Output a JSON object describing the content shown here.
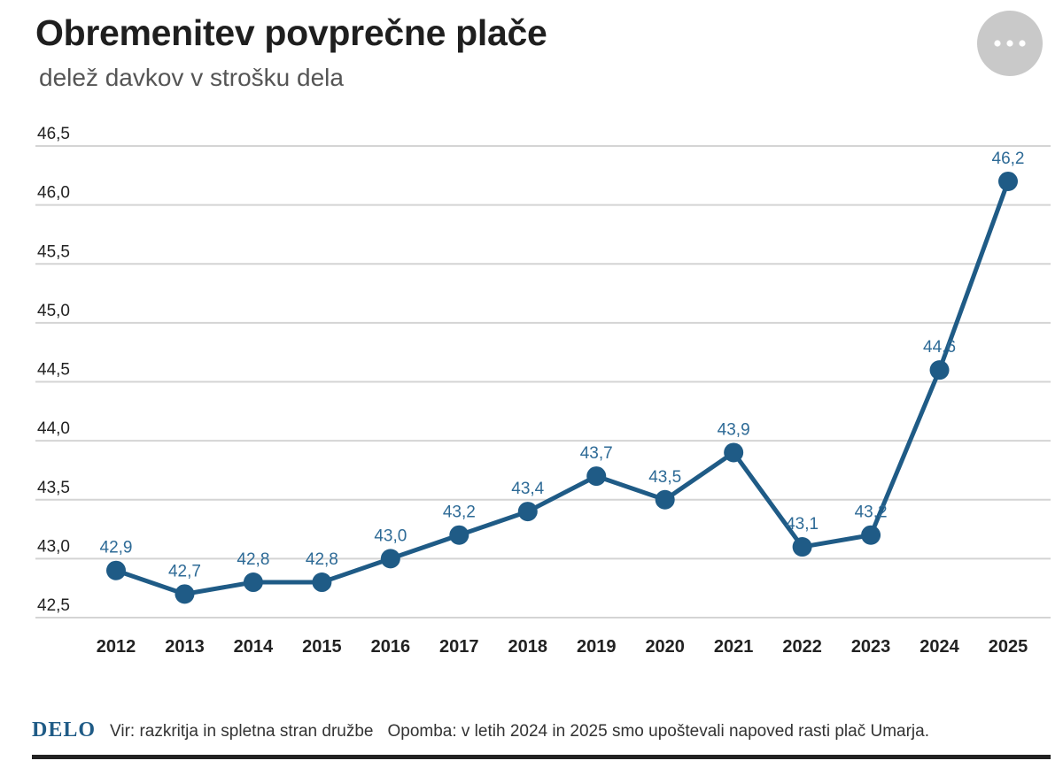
{
  "header": {
    "title": "Obremenitev povprečne plače",
    "subtitle": "delež davkov v strošku dela",
    "more_icon": "more-horizontal-icon"
  },
  "colors": {
    "series": "#1f5b86",
    "label": "#2d6a96",
    "grid": "#d4d4d4",
    "axis_text": "#222222"
  },
  "chart_data": {
    "type": "line",
    "title": "Obremenitev povprečne plače",
    "subtitle": "delež davkov v strošku dela",
    "xlabel": "",
    "ylabel": "",
    "categories": [
      "2012",
      "2013",
      "2014",
      "2015",
      "2016",
      "2017",
      "2018",
      "2019",
      "2020",
      "2021",
      "2022",
      "2023",
      "2024",
      "2025"
    ],
    "series": [
      {
        "values": [
          42.9,
          42.7,
          42.8,
          42.8,
          43.0,
          43.2,
          43.4,
          43.7,
          43.5,
          43.9,
          43.1,
          43.2,
          44.6,
          46.2
        ],
        "labels": [
          "42,9",
          "42,7",
          "42,8",
          "42,8",
          "43,0",
          "43,2",
          "43,4",
          "43,7",
          "43,5",
          "43,9",
          "43,1",
          "43,2",
          "44,6",
          "46,2"
        ]
      }
    ],
    "yticks": [
      42.5,
      43.0,
      43.5,
      44.0,
      44.5,
      45.0,
      45.5,
      46.0,
      46.5
    ],
    "ytick_labels": [
      "42,5",
      "43,0",
      "43,5",
      "44,0",
      "44,5",
      "45,0",
      "45,5",
      "46,0",
      "46,5"
    ],
    "ylim": [
      42.5,
      46.5
    ],
    "grid": true,
    "legend": "none"
  },
  "footer": {
    "logo": "DELO",
    "source": "Vir: razkritja in spletna stran družbe",
    "note": "Opomba: v letih 2024 in 2025 smo upoštevali napoved rasti plač Umarja."
  }
}
